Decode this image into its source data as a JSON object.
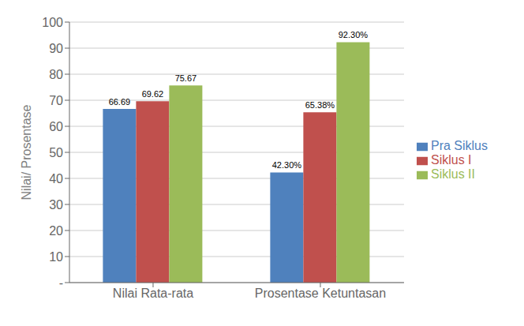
{
  "chart_data": {
    "type": "bar",
    "categories": [
      "Nilai Rata-rata",
      "Prosentase Ketuntasan"
    ],
    "series": [
      {
        "name": "Pra Siklus",
        "color": "#4F81BD",
        "values": [
          66.69,
          42.3
        ],
        "value_labels": [
          "66.69",
          "42.30%"
        ]
      },
      {
        "name": "Siklus I",
        "color": "#C0504D",
        "values": [
          69.62,
          65.38
        ],
        "value_labels": [
          "69.62",
          "65.38%"
        ]
      },
      {
        "name": "Siklus II",
        "color": "#9BBB59",
        "values": [
          75.67,
          92.3
        ],
        "value_labels": [
          "75.67",
          "92.30%"
        ]
      }
    ],
    "ylabel": "Nilai/ Prosentase",
    "ylim": [
      0,
      100
    ],
    "yticks": [
      {
        "value": 0,
        "label": "-"
      },
      10,
      20,
      30,
      40,
      50,
      60,
      70,
      80,
      90,
      100
    ],
    "grid": true,
    "legend": "right",
    "data_labels": true
  }
}
